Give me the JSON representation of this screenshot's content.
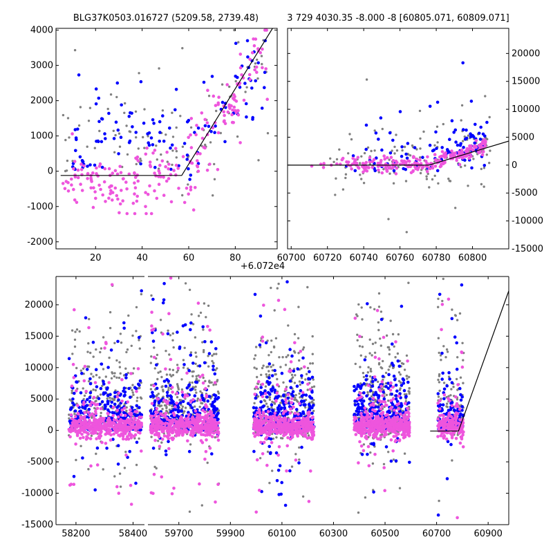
{
  "chart_data": [
    {
      "type": "scatter",
      "panel": "top-left",
      "title": "BLG37K0503.016727 (5209.58, 2739.48)",
      "xlim": [
        3,
        98
      ],
      "ylim": [
        -2200,
        4050
      ],
      "xticks": [
        20,
        40,
        60,
        80
      ],
      "yticks": [
        -2000,
        -1000,
        0,
        1000,
        2000,
        3000,
        4000
      ],
      "yaxis": "left",
      "offset_text": "",
      "series_colors": {
        "grey": "#808080",
        "blue": "#0000ff",
        "magenta": "#ee55dd",
        "model": "#000000"
      },
      "model_line": {
        "x": [
          5,
          57,
          96
        ],
        "y": [
          -120,
          -120,
          4050
        ]
      },
      "series": [
        {
          "color": "grey",
          "x_range": [
            5,
            95
          ],
          "y_band": [
            -1100,
            4000
          ],
          "count": 110,
          "seed": 11,
          "shape": "rising",
          "knee": 57,
          "base": -120,
          "top": 4000
        },
        {
          "color": "blue",
          "x_range": [
            8,
            93
          ],
          "y_band": [
            -300,
            3700
          ],
          "count": 120,
          "seed": 23,
          "shape": "rising",
          "knee": 57,
          "base": 200,
          "top": 3600
        },
        {
          "color": "magenta",
          "x_range": [
            5,
            94
          ],
          "y_band": [
            -1200,
            4000
          ],
          "count": 230,
          "seed": 37,
          "shape": "rising",
          "knee": 57,
          "base": -300,
          "top": 3900
        }
      ]
    },
    {
      "type": "scatter",
      "panel": "top-right",
      "title": "3 729 4030.35 -8.000 -8 [60805.071, 60809.071]",
      "xlim": [
        60698,
        60820
      ],
      "ylim": [
        -15000,
        24500
      ],
      "xticks": [
        60700,
        60720,
        60740,
        60760,
        60780,
        60800
      ],
      "yticks": [
        -15000,
        -10000,
        -5000,
        0,
        5000,
        10000,
        15000,
        20000
      ],
      "yaxis": "right",
      "offset_text": "+6.072e4",
      "model_line": {
        "x": [
          60698,
          60776,
          60820
        ],
        "y": [
          0,
          0,
          4300
        ]
      },
      "series": [
        {
          "color": "grey",
          "x_range": [
            60708,
            60810
          ],
          "y_band": [
            -12000,
            24000
          ],
          "count": 140,
          "seed": 41,
          "shape": "flat",
          "base": 500,
          "spread": 2500
        },
        {
          "color": "blue",
          "x_range": [
            60725,
            60808
          ],
          "y_band": [
            -1000,
            23000
          ],
          "count": 110,
          "seed": 53,
          "shape": "flat",
          "base": 800,
          "spread": 1800
        },
        {
          "color": "magenta",
          "x_range": [
            60705,
            60808
          ],
          "y_band": [
            -2000,
            24000
          ],
          "count": 240,
          "seed": 67,
          "shape": "flat",
          "base": 0,
          "spread": 600
        }
      ]
    },
    {
      "type": "scatter",
      "panel": "bottom",
      "title": "",
      "ylim": [
        -15000,
        24500
      ],
      "yticks": [
        -15000,
        -10000,
        -5000,
        0,
        5000,
        10000,
        15000,
        20000
      ],
      "yaxis": "left",
      "offset_text": "",
      "segments": [
        {
          "xlim": [
            58130,
            58440
          ],
          "xticks": [
            58200,
            58400
          ]
        },
        {
          "xlim": [
            59580,
            60980
          ],
          "xticks": [
            59700,
            59900,
            60100,
            60300,
            60500,
            60700,
            60900
          ]
        }
      ],
      "model_line": {
        "x": [
          60675,
          60785,
          61000
        ],
        "y": [
          -100,
          -100,
          24500
        ]
      },
      "clusters": [
        {
          "seg": 0,
          "x_range": [
            58175,
            58430
          ],
          "count": 260,
          "seed": 101
        },
        {
          "seg": 1,
          "x_range": [
            59590,
            59855
          ],
          "count": 300,
          "seed": 113
        },
        {
          "seg": 1,
          "x_range": [
            59990,
            60225
          ],
          "count": 300,
          "seed": 127
        },
        {
          "seg": 1,
          "x_range": [
            60380,
            60595
          ],
          "count": 300,
          "seed": 139
        },
        {
          "seg": 1,
          "x_range": [
            60705,
            60805
          ],
          "count": 110,
          "seed": 151
        }
      ]
    }
  ]
}
